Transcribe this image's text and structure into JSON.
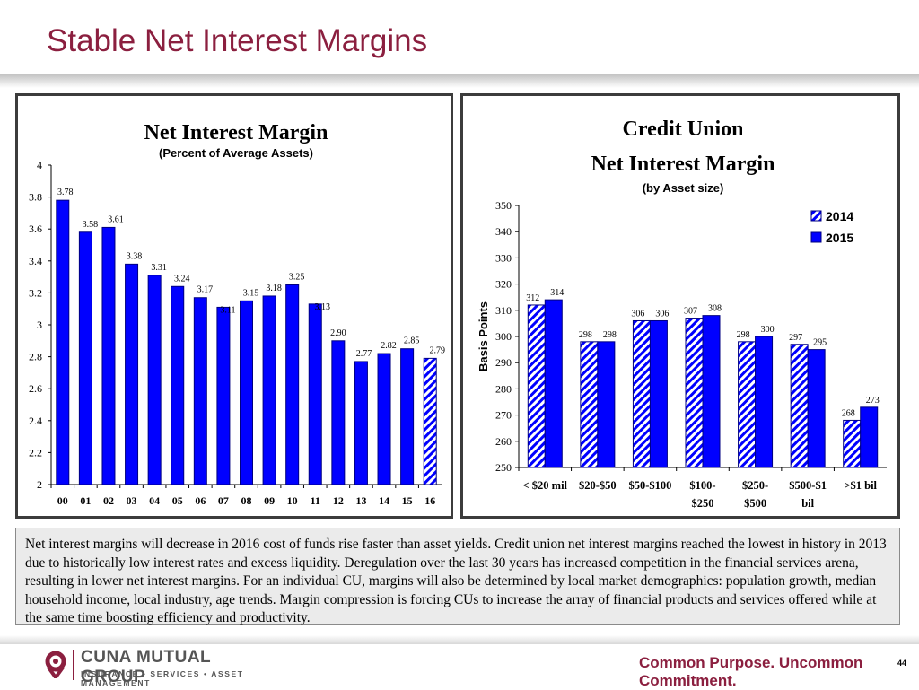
{
  "slide": {
    "title": "Stable Net Interest Margins",
    "notes": "Net interest margins will decrease in 2016 cost of funds rise faster than asset yields. Credit union net interest margins reached the lowest in history in 2013 due to historically low interest rates and excess liquidity. Deregulation over the last 30 years has increased competition in the financial services arena, resulting in lower net interest margins. For an individual CU, margins will also be determined by local market demographics: population growth, median household income, local industry, age trends.  Margin compression is forcing CUs to increase the array of financial products and services offered while at the same time boosting efficiency and productivity.",
    "footer": {
      "logo_name": "CUNA MUTUAL GROUP",
      "logo_sub": "INSURANCE • SERVICES • ASSET MANAGEMENT",
      "tagline": "Common Purpose. Uncommon Commitment.",
      "page_number": "44"
    },
    "colors": {
      "accent": "#8b1f3f",
      "bar_blue": "#0000ff",
      "bar_outline": "#000080"
    }
  },
  "chart_data": [
    {
      "type": "bar",
      "title": "Net Interest Margin",
      "subtitle": "(Percent of Average Assets)",
      "xlabel": "",
      "ylabel": "",
      "categories": [
        "00",
        "01",
        "02",
        "03",
        "04",
        "05",
        "06",
        "07",
        "08",
        "09",
        "10",
        "11",
        "12",
        "13",
        "14",
        "15",
        "16"
      ],
      "values": [
        3.78,
        3.58,
        3.61,
        3.38,
        3.31,
        3.24,
        3.17,
        3.11,
        3.15,
        3.18,
        3.25,
        3.13,
        2.9,
        2.77,
        2.82,
        2.85,
        2.79
      ],
      "value_labels": [
        "3.78",
        "3.58",
        "3.61",
        "3.38",
        "3.31",
        "3.24",
        "3.17",
        "3.11",
        "3.15",
        "3.18",
        "3.25",
        "3.13",
        "2.90",
        "2.77",
        "2.82",
        "2.85",
        "2.79"
      ],
      "forecast_index": 16,
      "ylim": [
        2,
        4
      ],
      "yticks": [
        "2",
        "2.2",
        "2.4",
        "2.6",
        "2.8",
        "3",
        "3.2",
        "3.4",
        "3.6",
        "3.8",
        "4"
      ],
      "grid": false,
      "legend": "none"
    },
    {
      "type": "bar",
      "title": "Credit Union",
      "title_line2": "Net Interest Margin",
      "subtitle": "(by Asset size)",
      "xlabel": "",
      "ylabel": "Basis Points",
      "categories": [
        "< $20 mil",
        "$20-$50",
        "$50-$100",
        "$100-\n$250",
        "$250-\n$500",
        "$500-$1\nbil",
        ">$1 bil"
      ],
      "series": [
        {
          "name": "2014",
          "style": "hatched",
          "values": [
            312,
            298,
            306,
            307,
            298,
            297,
            268
          ]
        },
        {
          "name": "2015",
          "style": "solid",
          "values": [
            314,
            298,
            306,
            308,
            300,
            295,
            273
          ]
        }
      ],
      "ylim": [
        250,
        350
      ],
      "yticks": [
        "250",
        "260",
        "270",
        "280",
        "290",
        "300",
        "310",
        "320",
        "330",
        "340",
        "350"
      ],
      "grid": false,
      "legend": "top-right"
    }
  ]
}
